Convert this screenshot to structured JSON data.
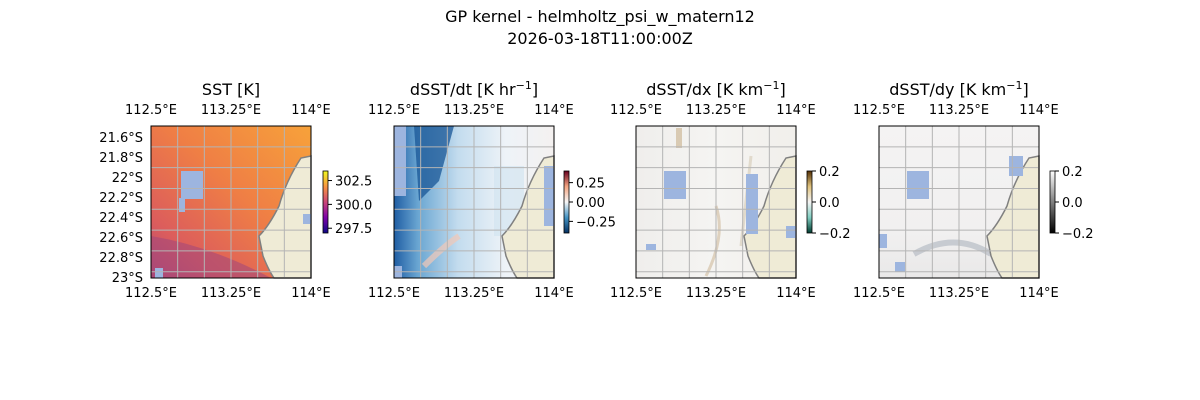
{
  "suptitle": {
    "line1": "GP kernel - helmholtz_psi_w_matern12",
    "line2": "2026-03-18T11:00:00Z"
  },
  "chart_data": [
    {
      "type": "heatmap",
      "title": "SST [K]",
      "colormap": "plasma",
      "xticks": [
        "112.5°E",
        "113.25°E",
        "114°E"
      ],
      "yticks": [
        "21.6°S",
        "21.8°S",
        "22°S",
        "22.2°S",
        "22.4°S",
        "22.6°S",
        "22.8°S",
        "23°S"
      ],
      "xlim": [
        112.5,
        114.0
      ],
      "ylim": [
        -23.0,
        -21.6
      ],
      "colorbar": {
        "ticks": [
          "302.5",
          "300.0",
          "297.5"
        ],
        "range": [
          297.0,
          303.5
        ]
      },
      "data_summary": "values ~300-302 K, warmer (orange) to the north-east, cooler (purple) in the south-west corner; land masked on the east, missing pixels shown in light blue"
    },
    {
      "type": "heatmap",
      "title": "dSST/dt [K hr",
      "title_exp": "−1",
      "title_close": "]",
      "colormap": "RdBu_r",
      "xticks": [
        "112.5°E",
        "113.25°E",
        "114°E"
      ],
      "xlim": [
        112.5,
        114.0
      ],
      "colorbar": {
        "ticks": [
          "0.25",
          "0.00",
          "−0.25"
        ],
        "range": [
          -0.4,
          0.4
        ]
      },
      "data_summary": "mostly negative (blue) on the western side, near zero in the centre"
    },
    {
      "type": "heatmap",
      "title": "dSST/dx [K km",
      "title_exp": "−1",
      "title_close": "]",
      "colormap": "BrBG_r",
      "xticks": [
        "112.5°E",
        "113.25°E",
        "114°E"
      ],
      "xlim": [
        112.5,
        114.0
      ],
      "colorbar": {
        "ticks": [
          "0.2",
          "0.0",
          "−0.2"
        ],
        "range": [
          -0.2,
          0.2
        ]
      },
      "data_summary": "near zero everywhere with faint brown streaks"
    },
    {
      "type": "heatmap",
      "title": "dSST/dy [K km",
      "title_exp": "−1",
      "title_close": "]",
      "colormap": "gray",
      "xticks": [
        "112.5°E",
        "113.25°E",
        "114°E"
      ],
      "xlim": [
        112.5,
        114.0
      ],
      "colorbar": {
        "ticks": [
          "0.2",
          "0.0",
          "−0.2"
        ],
        "range": [
          -0.2,
          0.2
        ]
      },
      "data_summary": "near zero everywhere with a faint curved band near the southern edge"
    }
  ],
  "colors": {
    "land": "#efebd6",
    "coast": "#808080",
    "missing": "#9db5df",
    "grid": "#b4b4b4"
  }
}
